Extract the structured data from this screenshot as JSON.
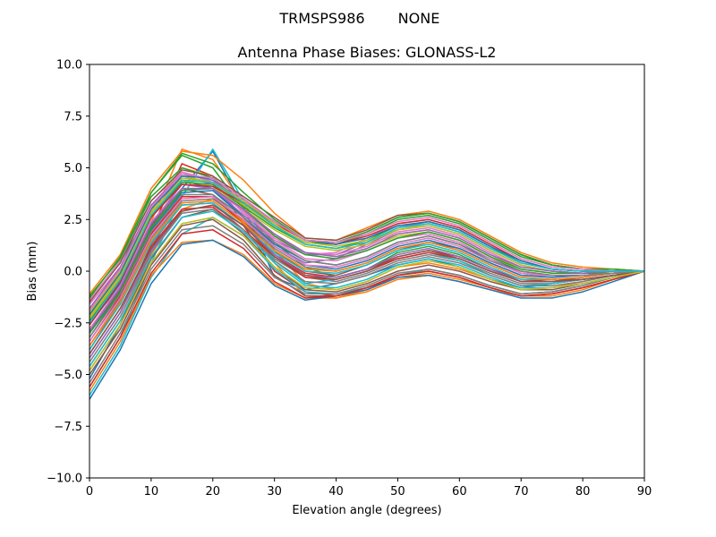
{
  "chart_data": {
    "type": "line",
    "suptitle_left": "TRMSPS986",
    "suptitle_right": "NONE",
    "title": "Antenna Phase Biases: GLONASS-L2",
    "xlabel": "Elevation angle (degrees)",
    "ylabel": "Bias (mm)",
    "xlim": [
      0,
      90
    ],
    "ylim": [
      -10,
      10
    ],
    "xticks": [
      0,
      10,
      20,
      30,
      40,
      50,
      60,
      70,
      80,
      90
    ],
    "yticks": [
      -10.0,
      -7.5,
      -5.0,
      -2.5,
      0.0,
      2.5,
      5.0,
      7.5,
      10.0
    ],
    "ytick_labels": [
      "−10.0",
      "−7.5",
      "−5.0",
      "−2.5",
      "0.0",
      "2.5",
      "5.0",
      "7.5",
      "10.0"
    ],
    "xtick_labels": [
      "0",
      "10",
      "20",
      "30",
      "40",
      "50",
      "60",
      "70",
      "80",
      "90"
    ],
    "grid": false,
    "x": [
      0,
      5,
      10,
      15,
      20,
      25,
      30,
      35,
      40,
      45,
      50,
      55,
      60,
      65,
      70,
      75,
      80,
      85,
      90
    ],
    "envelope": {
      "note_free": true,
      "lower": [
        -6.3,
        -3.8,
        -0.7,
        1.2,
        1.4,
        0.6,
        -0.8,
        -1.5,
        -1.3,
        -1.0,
        -0.4,
        -0.2,
        -0.5,
        -0.9,
        -1.3,
        -1.3,
        -1.0,
        -0.5,
        0.0
      ],
      "upper": [
        -1.0,
        0.8,
        4.1,
        5.9,
        5.8,
        4.5,
        2.9,
        1.6,
        1.6,
        2.2,
        2.8,
        2.9,
        2.5,
        1.7,
        0.9,
        0.4,
        0.2,
        0.2,
        0.0
      ]
    },
    "series": [
      {
        "color": "#1f77b4",
        "values": [
          -5.2,
          -2.6,
          1.0,
          4.0,
          5.8,
          3.1,
          -0.3,
          -0.9,
          -0.6,
          -0.2,
          0.3,
          0.6,
          0.2,
          -0.4,
          -0.8,
          -0.6,
          -0.4,
          -0.2,
          0.0
        ]
      },
      {
        "color": "#ff7f0e",
        "values": [
          -2.4,
          -0.8,
          2.4,
          5.9,
          5.4,
          3.2,
          1.0,
          -0.6,
          -0.9,
          -0.5,
          0.2,
          0.4,
          0.1,
          -0.4,
          -0.9,
          -0.8,
          -0.5,
          -0.2,
          0.0
        ]
      },
      {
        "color": "#2ca02c",
        "values": [
          -1.8,
          0.1,
          3.8,
          5.6,
          5.0,
          3.0,
          1.4,
          0.2,
          -0.3,
          0.1,
          0.9,
          1.2,
          0.8,
          0.1,
          -0.5,
          -0.5,
          -0.3,
          -0.1,
          0.0
        ]
      },
      {
        "color": "#d62728",
        "values": [
          -3.8,
          -1.5,
          2.0,
          5.2,
          4.6,
          2.2,
          0.0,
          -1.0,
          -1.2,
          -0.9,
          -0.2,
          0.1,
          -0.2,
          -0.7,
          -1.1,
          -1.0,
          -0.7,
          -0.3,
          0.0
        ]
      },
      {
        "color": "#9467bd",
        "values": [
          -2.2,
          -0.3,
          2.8,
          4.6,
          4.2,
          2.6,
          1.2,
          0.4,
          0.6,
          1.3,
          2.0,
          2.2,
          1.8,
          1.0,
          0.3,
          0.0,
          -0.1,
          -0.1,
          0.0
        ]
      },
      {
        "color": "#8c564b",
        "values": [
          -3.0,
          -0.9,
          2.2,
          4.0,
          3.7,
          2.4,
          1.0,
          0.0,
          -0.2,
          0.3,
          1.0,
          1.4,
          1.1,
          0.4,
          -0.2,
          -0.3,
          -0.2,
          -0.1,
          0.0
        ]
      },
      {
        "color": "#e377c2",
        "values": [
          -1.4,
          0.5,
          3.4,
          4.8,
          4.3,
          2.8,
          1.6,
          0.8,
          0.9,
          1.6,
          2.3,
          2.5,
          2.1,
          1.3,
          0.5,
          0.1,
          0.0,
          0.0,
          0.0
        ]
      },
      {
        "color": "#7f7f7f",
        "values": [
          -4.2,
          -2.0,
          1.3,
          3.2,
          3.3,
          2.0,
          0.6,
          -0.3,
          -0.5,
          -0.1,
          0.5,
          0.8,
          0.5,
          -0.1,
          -0.6,
          -0.6,
          -0.4,
          -0.2,
          0.0
        ]
      },
      {
        "color": "#bcbd22",
        "values": [
          -2.0,
          0.0,
          3.0,
          5.0,
          4.6,
          3.0,
          1.8,
          0.9,
          0.7,
          1.1,
          1.7,
          1.9,
          1.5,
          0.7,
          0.0,
          -0.2,
          -0.2,
          -0.1,
          0.0
        ]
      },
      {
        "color": "#17becf",
        "values": [
          -5.6,
          -3.2,
          0.4,
          3.6,
          5.9,
          3.4,
          0.5,
          -0.6,
          -0.4,
          0.0,
          0.6,
          0.9,
          0.5,
          -0.2,
          -0.7,
          -0.6,
          -0.4,
          -0.2,
          0.0
        ]
      },
      {
        "color": "#1f77b4",
        "values": [
          -2.6,
          -0.6,
          2.6,
          4.4,
          4.0,
          2.6,
          1.3,
          0.5,
          0.3,
          0.7,
          1.4,
          1.7,
          1.3,
          0.6,
          0.0,
          -0.2,
          -0.2,
          -0.1,
          0.0
        ]
      },
      {
        "color": "#ff7f0e",
        "values": [
          -4.6,
          -2.4,
          0.8,
          3.0,
          3.5,
          2.4,
          0.4,
          -1.2,
          -1.3,
          -1.0,
          -0.4,
          -0.2,
          -0.5,
          -0.9,
          -1.2,
          -1.1,
          -0.8,
          -0.4,
          0.0
        ]
      },
      {
        "color": "#2ca02c",
        "values": [
          -1.2,
          0.6,
          3.6,
          5.0,
          4.5,
          3.2,
          2.2,
          1.4,
          1.3,
          1.8,
          2.5,
          2.7,
          2.3,
          1.5,
          0.7,
          0.3,
          0.1,
          0.0,
          0.0
        ]
      },
      {
        "color": "#d62728",
        "values": [
          -3.4,
          -1.2,
          1.8,
          3.6,
          3.6,
          2.3,
          0.8,
          -0.1,
          -0.3,
          0.1,
          0.7,
          1.0,
          0.7,
          0.1,
          -0.4,
          -0.5,
          -0.3,
          -0.1,
          0.0
        ]
      },
      {
        "color": "#9467bd",
        "values": [
          -2.8,
          -0.8,
          2.3,
          4.2,
          4.0,
          2.7,
          1.5,
          0.8,
          0.8,
          1.4,
          2.1,
          2.4,
          2.0,
          1.2,
          0.4,
          0.1,
          0.0,
          0.0,
          0.0
        ]
      },
      {
        "color": "#8c564b",
        "values": [
          -4.8,
          -2.6,
          0.6,
          2.6,
          3.0,
          1.8,
          0.2,
          -0.9,
          -1.0,
          -0.6,
          0.0,
          0.3,
          0.0,
          -0.5,
          -0.9,
          -0.9,
          -0.6,
          -0.3,
          0.0
        ]
      },
      {
        "color": "#e377c2",
        "values": [
          -1.6,
          0.2,
          3.2,
          4.8,
          4.4,
          2.9,
          1.5,
          0.6,
          0.5,
          1.0,
          1.6,
          1.8,
          1.4,
          0.6,
          -0.1,
          -0.3,
          -0.2,
          -0.1,
          0.0
        ]
      },
      {
        "color": "#7f7f7f",
        "values": [
          -3.6,
          -1.4,
          1.6,
          3.4,
          3.5,
          2.5,
          1.1,
          0.2,
          0.0,
          0.4,
          1.1,
          1.4,
          1.0,
          0.3,
          -0.3,
          -0.4,
          -0.3,
          -0.1,
          0.0
        ]
      },
      {
        "color": "#bcbd22",
        "values": [
          -2.2,
          -0.2,
          2.9,
          4.4,
          4.1,
          3.0,
          2.0,
          1.2,
          1.0,
          1.3,
          1.8,
          2.0,
          1.6,
          0.8,
          0.1,
          -0.1,
          -0.1,
          -0.1,
          0.0
        ]
      },
      {
        "color": "#17becf",
        "values": [
          -6.0,
          -3.6,
          -0.3,
          1.8,
          2.6,
          1.7,
          0.1,
          -1.0,
          -1.1,
          -0.8,
          -0.2,
          0.1,
          -0.2,
          -0.7,
          -1.1,
          -1.0,
          -0.7,
          -0.3,
          0.0
        ]
      },
      {
        "color": "#1f77b4",
        "values": [
          -3.2,
          -1.0,
          2.0,
          3.8,
          3.9,
          2.6,
          1.2,
          0.3,
          0.1,
          0.5,
          1.2,
          1.5,
          1.1,
          0.4,
          -0.2,
          -0.3,
          -0.2,
          -0.1,
          0.0
        ]
      },
      {
        "color": "#ff7f0e",
        "values": [
          -5.8,
          -3.4,
          -0.2,
          1.4,
          1.5,
          0.8,
          -0.6,
          -1.3,
          -1.3,
          -0.9,
          -0.3,
          -0.1,
          -0.4,
          -0.8,
          -1.2,
          -1.2,
          -0.9,
          -0.4,
          0.0
        ]
      },
      {
        "color": "#2ca02c",
        "values": [
          -2.4,
          -0.4,
          2.6,
          4.3,
          4.2,
          3.1,
          2.1,
          1.3,
          1.1,
          1.5,
          2.2,
          2.4,
          2.0,
          1.2,
          0.4,
          0.1,
          0.0,
          0.0,
          0.0
        ]
      },
      {
        "color": "#d62728",
        "values": [
          -4.0,
          -1.8,
          1.2,
          3.0,
          3.1,
          2.0,
          0.7,
          -0.3,
          -0.4,
          0.0,
          0.6,
          0.9,
          0.6,
          0.0,
          -0.5,
          -0.5,
          -0.4,
          -0.2,
          0.0
        ]
      },
      {
        "color": "#9467bd",
        "values": [
          -1.8,
          0.2,
          3.2,
          4.7,
          4.4,
          3.4,
          2.4,
          1.5,
          1.4,
          1.9,
          2.6,
          2.8,
          2.4,
          1.6,
          0.8,
          0.3,
          0.1,
          0.0,
          0.0
        ]
      },
      {
        "color": "#8c564b",
        "values": [
          -5.0,
          -2.8,
          0.3,
          2.2,
          2.5,
          1.5,
          -0.2,
          -1.2,
          -1.2,
          -0.8,
          -0.2,
          0.0,
          -0.3,
          -0.8,
          -1.2,
          -1.1,
          -0.8,
          -0.4,
          0.0
        ]
      },
      {
        "color": "#e377c2",
        "values": [
          -2.8,
          -0.7,
          2.4,
          4.0,
          4.0,
          2.9,
          1.7,
          0.9,
          0.8,
          1.2,
          1.9,
          2.1,
          1.7,
          0.9,
          0.2,
          0.0,
          -0.1,
          -0.1,
          0.0
        ]
      },
      {
        "color": "#7f7f7f",
        "values": [
          -4.4,
          -2.2,
          0.9,
          2.8,
          3.0,
          2.0,
          0.5,
          -0.5,
          -0.6,
          -0.2,
          0.4,
          0.7,
          0.4,
          -0.2,
          -0.7,
          -0.7,
          -0.5,
          -0.2,
          0.0
        ]
      },
      {
        "color": "#bcbd22",
        "values": [
          -2.0,
          0.0,
          3.0,
          4.6,
          4.3,
          3.2,
          2.2,
          1.4,
          1.2,
          1.5,
          2.0,
          2.2,
          1.8,
          1.0,
          0.3,
          0.0,
          -0.1,
          0.0,
          0.0
        ]
      },
      {
        "color": "#17becf",
        "values": [
          -3.8,
          -1.6,
          1.4,
          3.2,
          3.3,
          2.2,
          0.9,
          0.0,
          -0.1,
          0.3,
          1.0,
          1.3,
          0.9,
          0.2,
          -0.4,
          -0.4,
          -0.3,
          -0.1,
          0.0
        ]
      },
      {
        "color": "#1f77b4",
        "values": [
          -6.2,
          -3.8,
          -0.6,
          1.3,
          1.5,
          0.7,
          -0.7,
          -1.4,
          -1.2,
          -0.9,
          -0.3,
          -0.2,
          -0.5,
          -0.9,
          -1.3,
          -1.3,
          -1.0,
          -0.5,
          0.0
        ]
      },
      {
        "color": "#ff7f0e",
        "values": [
          -1.1,
          0.8,
          4.0,
          5.8,
          5.6,
          4.4,
          2.8,
          1.6,
          1.5,
          2.1,
          2.7,
          2.9,
          2.5,
          1.7,
          0.9,
          0.4,
          0.2,
          0.1,
          0.0
        ]
      },
      {
        "color": "#2ca02c",
        "values": [
          -3.0,
          -1.0,
          2.1,
          3.9,
          4.0,
          3.0,
          1.7,
          0.8,
          0.6,
          1.0,
          1.6,
          1.9,
          1.5,
          0.7,
          0.1,
          -0.1,
          -0.1,
          -0.1,
          0.0
        ]
      },
      {
        "color": "#d62728",
        "values": [
          -2.6,
          -0.5,
          2.6,
          4.2,
          4.1,
          3.3,
          2.3,
          1.5,
          1.3,
          1.7,
          2.3,
          2.5,
          2.1,
          1.3,
          0.5,
          0.1,
          0.0,
          0.0,
          0.0
        ]
      },
      {
        "color": "#9467bd",
        "values": [
          -4.2,
          -2.0,
          1.0,
          2.9,
          3.2,
          2.2,
          0.8,
          -0.2,
          -0.3,
          0.1,
          0.8,
          1.1,
          0.7,
          0.1,
          -0.5,
          -0.5,
          -0.4,
          -0.2,
          0.0
        ]
      },
      {
        "color": "#8c564b",
        "values": [
          -1.5,
          0.4,
          3.4,
          4.9,
          4.6,
          3.6,
          2.6,
          1.6,
          1.5,
          2.0,
          2.7,
          2.8,
          2.4,
          1.6,
          0.8,
          0.3,
          0.1,
          0.1,
          0.0
        ]
      },
      {
        "color": "#e377c2",
        "values": [
          -3.4,
          -1.3,
          1.7,
          3.5,
          3.6,
          2.5,
          1.2,
          0.3,
          0.2,
          0.6,
          1.3,
          1.6,
          1.2,
          0.5,
          -0.1,
          -0.2,
          -0.2,
          -0.1,
          0.0
        ]
      },
      {
        "color": "#7f7f7f",
        "values": [
          -5.4,
          -3.0,
          0.1,
          2.0,
          2.2,
          1.3,
          -0.3,
          -1.1,
          -1.1,
          -0.7,
          -0.1,
          0.1,
          -0.2,
          -0.7,
          -1.1,
          -1.0,
          -0.7,
          -0.3,
          0.0
        ]
      },
      {
        "color": "#bcbd22",
        "values": [
          -2.3,
          -0.3,
          2.8,
          4.5,
          4.3,
          3.4,
          2.3,
          1.3,
          1.1,
          1.4,
          2.0,
          2.3,
          1.9,
          1.1,
          0.4,
          0.1,
          0.0,
          0.0,
          0.0
        ]
      },
      {
        "color": "#17becf",
        "values": [
          -4.6,
          -2.4,
          0.7,
          2.6,
          2.9,
          1.9,
          0.4,
          -0.7,
          -0.8,
          -0.4,
          0.3,
          0.6,
          0.3,
          -0.3,
          -0.8,
          -0.8,
          -0.6,
          -0.3,
          0.0
        ]
      },
      {
        "color": "#1f77b4",
        "values": [
          -2.1,
          -0.1,
          3.0,
          4.6,
          4.5,
          3.5,
          2.4,
          1.5,
          1.3,
          1.6,
          2.2,
          2.4,
          2.0,
          1.2,
          0.5,
          0.1,
          0.0,
          0.0,
          0.0
        ]
      },
      {
        "color": "#ff7f0e",
        "values": [
          -3.6,
          -1.5,
          1.5,
          3.3,
          3.4,
          2.3,
          1.0,
          0.1,
          0.0,
          0.4,
          1.1,
          1.4,
          1.0,
          0.3,
          -0.3,
          -0.4,
          -0.3,
          -0.1,
          0.0
        ]
      },
      {
        "color": "#2ca02c",
        "values": [
          -1.3,
          0.7,
          3.8,
          5.7,
          5.2,
          3.8,
          2.5,
          1.5,
          1.4,
          1.9,
          2.6,
          2.8,
          2.4,
          1.6,
          0.8,
          0.3,
          0.1,
          0.1,
          0.0
        ]
      },
      {
        "color": "#d62728",
        "values": [
          -5.6,
          -3.2,
          -0.1,
          1.8,
          2.0,
          1.1,
          -0.5,
          -1.3,
          -1.2,
          -0.8,
          -0.2,
          0.0,
          -0.3,
          -0.8,
          -1.2,
          -1.1,
          -0.8,
          -0.4,
          0.0
        ]
      },
      {
        "color": "#9467bd",
        "values": [
          -2.9,
          -0.8,
          2.3,
          4.0,
          4.0,
          3.0,
          1.8,
          0.9,
          0.7,
          1.1,
          1.8,
          2.0,
          1.6,
          0.8,
          0.2,
          0.0,
          -0.1,
          0.0,
          0.0
        ]
      },
      {
        "color": "#8c564b",
        "values": [
          -4.0,
          -1.8,
          1.1,
          2.9,
          3.2,
          2.2,
          0.7,
          -0.2,
          -0.4,
          0.0,
          0.7,
          1.0,
          0.6,
          0.0,
          -0.5,
          -0.5,
          -0.4,
          -0.2,
          0.0
        ]
      },
      {
        "color": "#e377c2",
        "values": [
          -1.9,
          0.1,
          3.1,
          4.7,
          4.5,
          3.5,
          2.4,
          1.5,
          1.4,
          1.8,
          2.4,
          2.6,
          2.2,
          1.4,
          0.6,
          0.2,
          0.1,
          0.0,
          0.0
        ]
      },
      {
        "color": "#7f7f7f",
        "values": [
          -3.2,
          -1.1,
          1.9,
          3.7,
          3.7,
          2.6,
          1.4,
          0.5,
          0.3,
          0.7,
          1.4,
          1.7,
          1.3,
          0.5,
          0.0,
          -0.2,
          -0.2,
          -0.1,
          0.0
        ]
      },
      {
        "color": "#bcbd22",
        "values": [
          -4.8,
          -2.6,
          0.4,
          2.3,
          2.6,
          1.7,
          0.2,
          -0.8,
          -0.9,
          -0.5,
          0.2,
          0.5,
          0.2,
          -0.4,
          -0.9,
          -0.8,
          -0.6,
          -0.3,
          0.0
        ]
      },
      {
        "color": "#17becf",
        "values": [
          -2.5,
          -0.4,
          2.7,
          4.4,
          4.3,
          3.3,
          2.2,
          1.3,
          1.1,
          1.4,
          2.1,
          2.3,
          1.9,
          1.1,
          0.4,
          0.1,
          0.0,
          0.0,
          0.0
        ]
      }
    ]
  }
}
